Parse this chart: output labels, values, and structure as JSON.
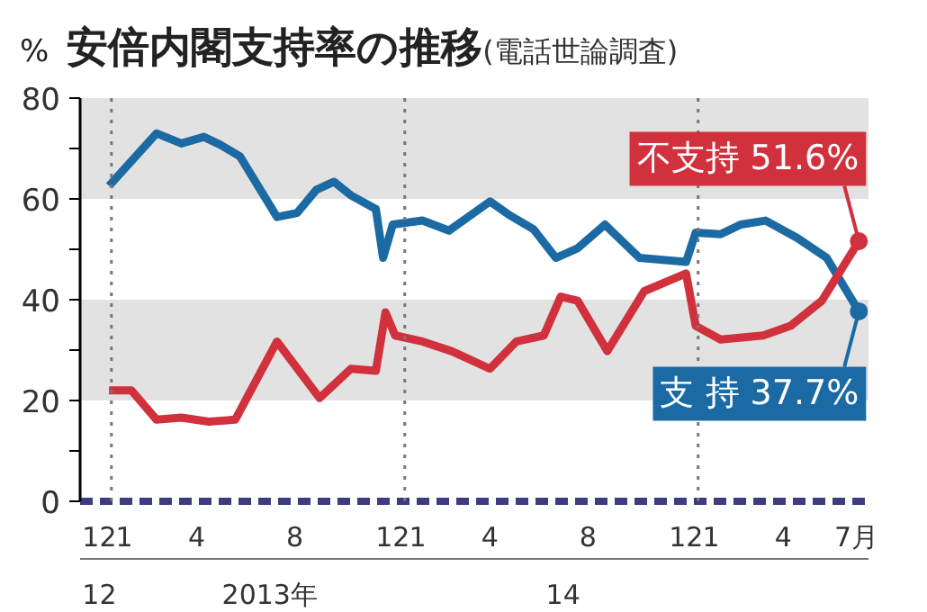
{
  "chart_data": {
    "type": "line",
    "title": "安倍内閣支持率の推移",
    "subtitle": "(電話世論調査)",
    "ylabel": "%",
    "xlim": [
      "2012-11-07",
      "2015-07-16"
    ],
    "ylim": [
      0,
      80
    ],
    "xticks": [
      {
        "value": "2012-12",
        "label": "12"
      },
      {
        "value": "2013-01",
        "label": "1"
      },
      {
        "value": "2013-04",
        "label": "4"
      },
      {
        "value": "2013-08",
        "label": "8"
      },
      {
        "value": "2013-12",
        "label": "12"
      },
      {
        "value": "2014-01",
        "label": "1"
      },
      {
        "value": "2014-04",
        "label": "4"
      },
      {
        "value": "2014-08",
        "label": "8"
      },
      {
        "value": "2014-12",
        "label": "12"
      },
      {
        "value": "2015-01",
        "label": "1"
      },
      {
        "value": "2015-04",
        "label": "4"
      },
      {
        "value": "2015-07",
        "label": "7月"
      }
    ],
    "x2lim": [
      "2012-11-07",
      "2015-07-16"
    ],
    "x2ticks": [
      {
        "value": "2012-12",
        "label": "12"
      },
      {
        "value": "2013-07",
        "label": "2013年"
      },
      {
        "value": "2014-07",
        "label": "14"
      }
    ],
    "yticks": [
      0,
      {
        "value": 10,
        "label": null
      },
      20,
      {
        "value": 30,
        "label": null
      },
      40,
      {
        "value": 50,
        "label": null
      },
      60,
      {
        "value": 70,
        "label": null
      },
      80
    ],
    "grid": false,
    "marker": "none",
    "line_style": "solid",
    "bands": [
      {
        "axis": "y",
        "from": 20,
        "to": 40,
        "color": "#e2e2e2"
      },
      {
        "axis": "y",
        "from": 60,
        "to": 80,
        "color": "#e2e2e2"
      }
    ],
    "ref_lines": [
      {
        "axis": "x",
        "value": "2012-12-16",
        "line_style": "dotted",
        "color": "#777777"
      },
      {
        "axis": "x",
        "value": "2013-12-16",
        "line_style": "dotted",
        "color": "#777777"
      },
      {
        "axis": "x",
        "value": "2014-12-16",
        "line_style": "dotted",
        "color": "#777777"
      }
    ],
    "series": [
      {
        "color": "#1b6aa3",
        "x": [
          "2012-12-13",
          "2013-02-10",
          "2013-03-13",
          "2013-04-10",
          "2013-05-01",
          "2013-05-25",
          "2013-07-10",
          "2013-08-04",
          "2013-08-28",
          "2013-09-19",
          "2013-10-10",
          "2013-11-10",
          "2013-11-19",
          "2013-12-01",
          "2014-01-07",
          "2014-02-09",
          "2014-04-01",
          "2014-04-25",
          "2014-05-25",
          "2014-06-22",
          "2014-07-19",
          "2014-08-22",
          "2014-10-04",
          "2014-12-01",
          "2014-12-13",
          "2015-01-13",
          "2015-02-07",
          "2015-03-10",
          "2015-04-19",
          "2015-05-25",
          "2015-07-04"
        ],
        "values": [
          62.6,
          73,
          71,
          72.3,
          70.7,
          68.4,
          56.4,
          57.2,
          61.8,
          63.4,
          60.7,
          58,
          48.3,
          54.9,
          55.7,
          53.7,
          59.5,
          56.8,
          54,
          48.3,
          50.2,
          54.9,
          48.3,
          47.5,
          53.3,
          53,
          54.9,
          55.7,
          52.2,
          48.3,
          37.7
        ]
      },
      {
        "color": "#d0313d",
        "x": [
          "2012-12-13",
          "2013-01-10",
          "2013-02-10",
          "2013-03-13",
          "2013-04-16",
          "2013-05-19",
          "2013-07-10",
          "2013-09-01",
          "2013-10-10",
          "2013-11-10",
          "2013-11-22",
          "2013-12-04",
          "2014-01-07",
          "2014-02-12",
          "2014-04-01",
          "2014-05-04",
          "2014-06-07",
          "2014-06-28",
          "2014-07-19",
          "2014-08-25",
          "2014-10-10",
          "2014-12-01",
          "2014-12-13",
          "2015-01-13",
          "2015-03-07",
          "2015-04-10",
          "2015-05-19",
          "2015-07-04"
        ],
        "values": [
          22,
          22,
          16.2,
          16.6,
          15.8,
          16.2,
          31.7,
          20.5,
          26.3,
          25.9,
          37.5,
          32.9,
          31.7,
          29.8,
          26.3,
          31.7,
          32.9,
          40.6,
          39.8,
          29.8,
          41.7,
          45.2,
          34.8,
          32.1,
          32.9,
          34.8,
          39.8,
          51.6
        ]
      }
    ],
    "annotations": [
      {
        "text": "不支持 51.6%",
        "x": "2015-07-04",
        "y": 51.6
      },
      {
        "text": "支 持 37.7%",
        "x": "2015-07-04",
        "y": 37.7
      }
    ]
  }
}
